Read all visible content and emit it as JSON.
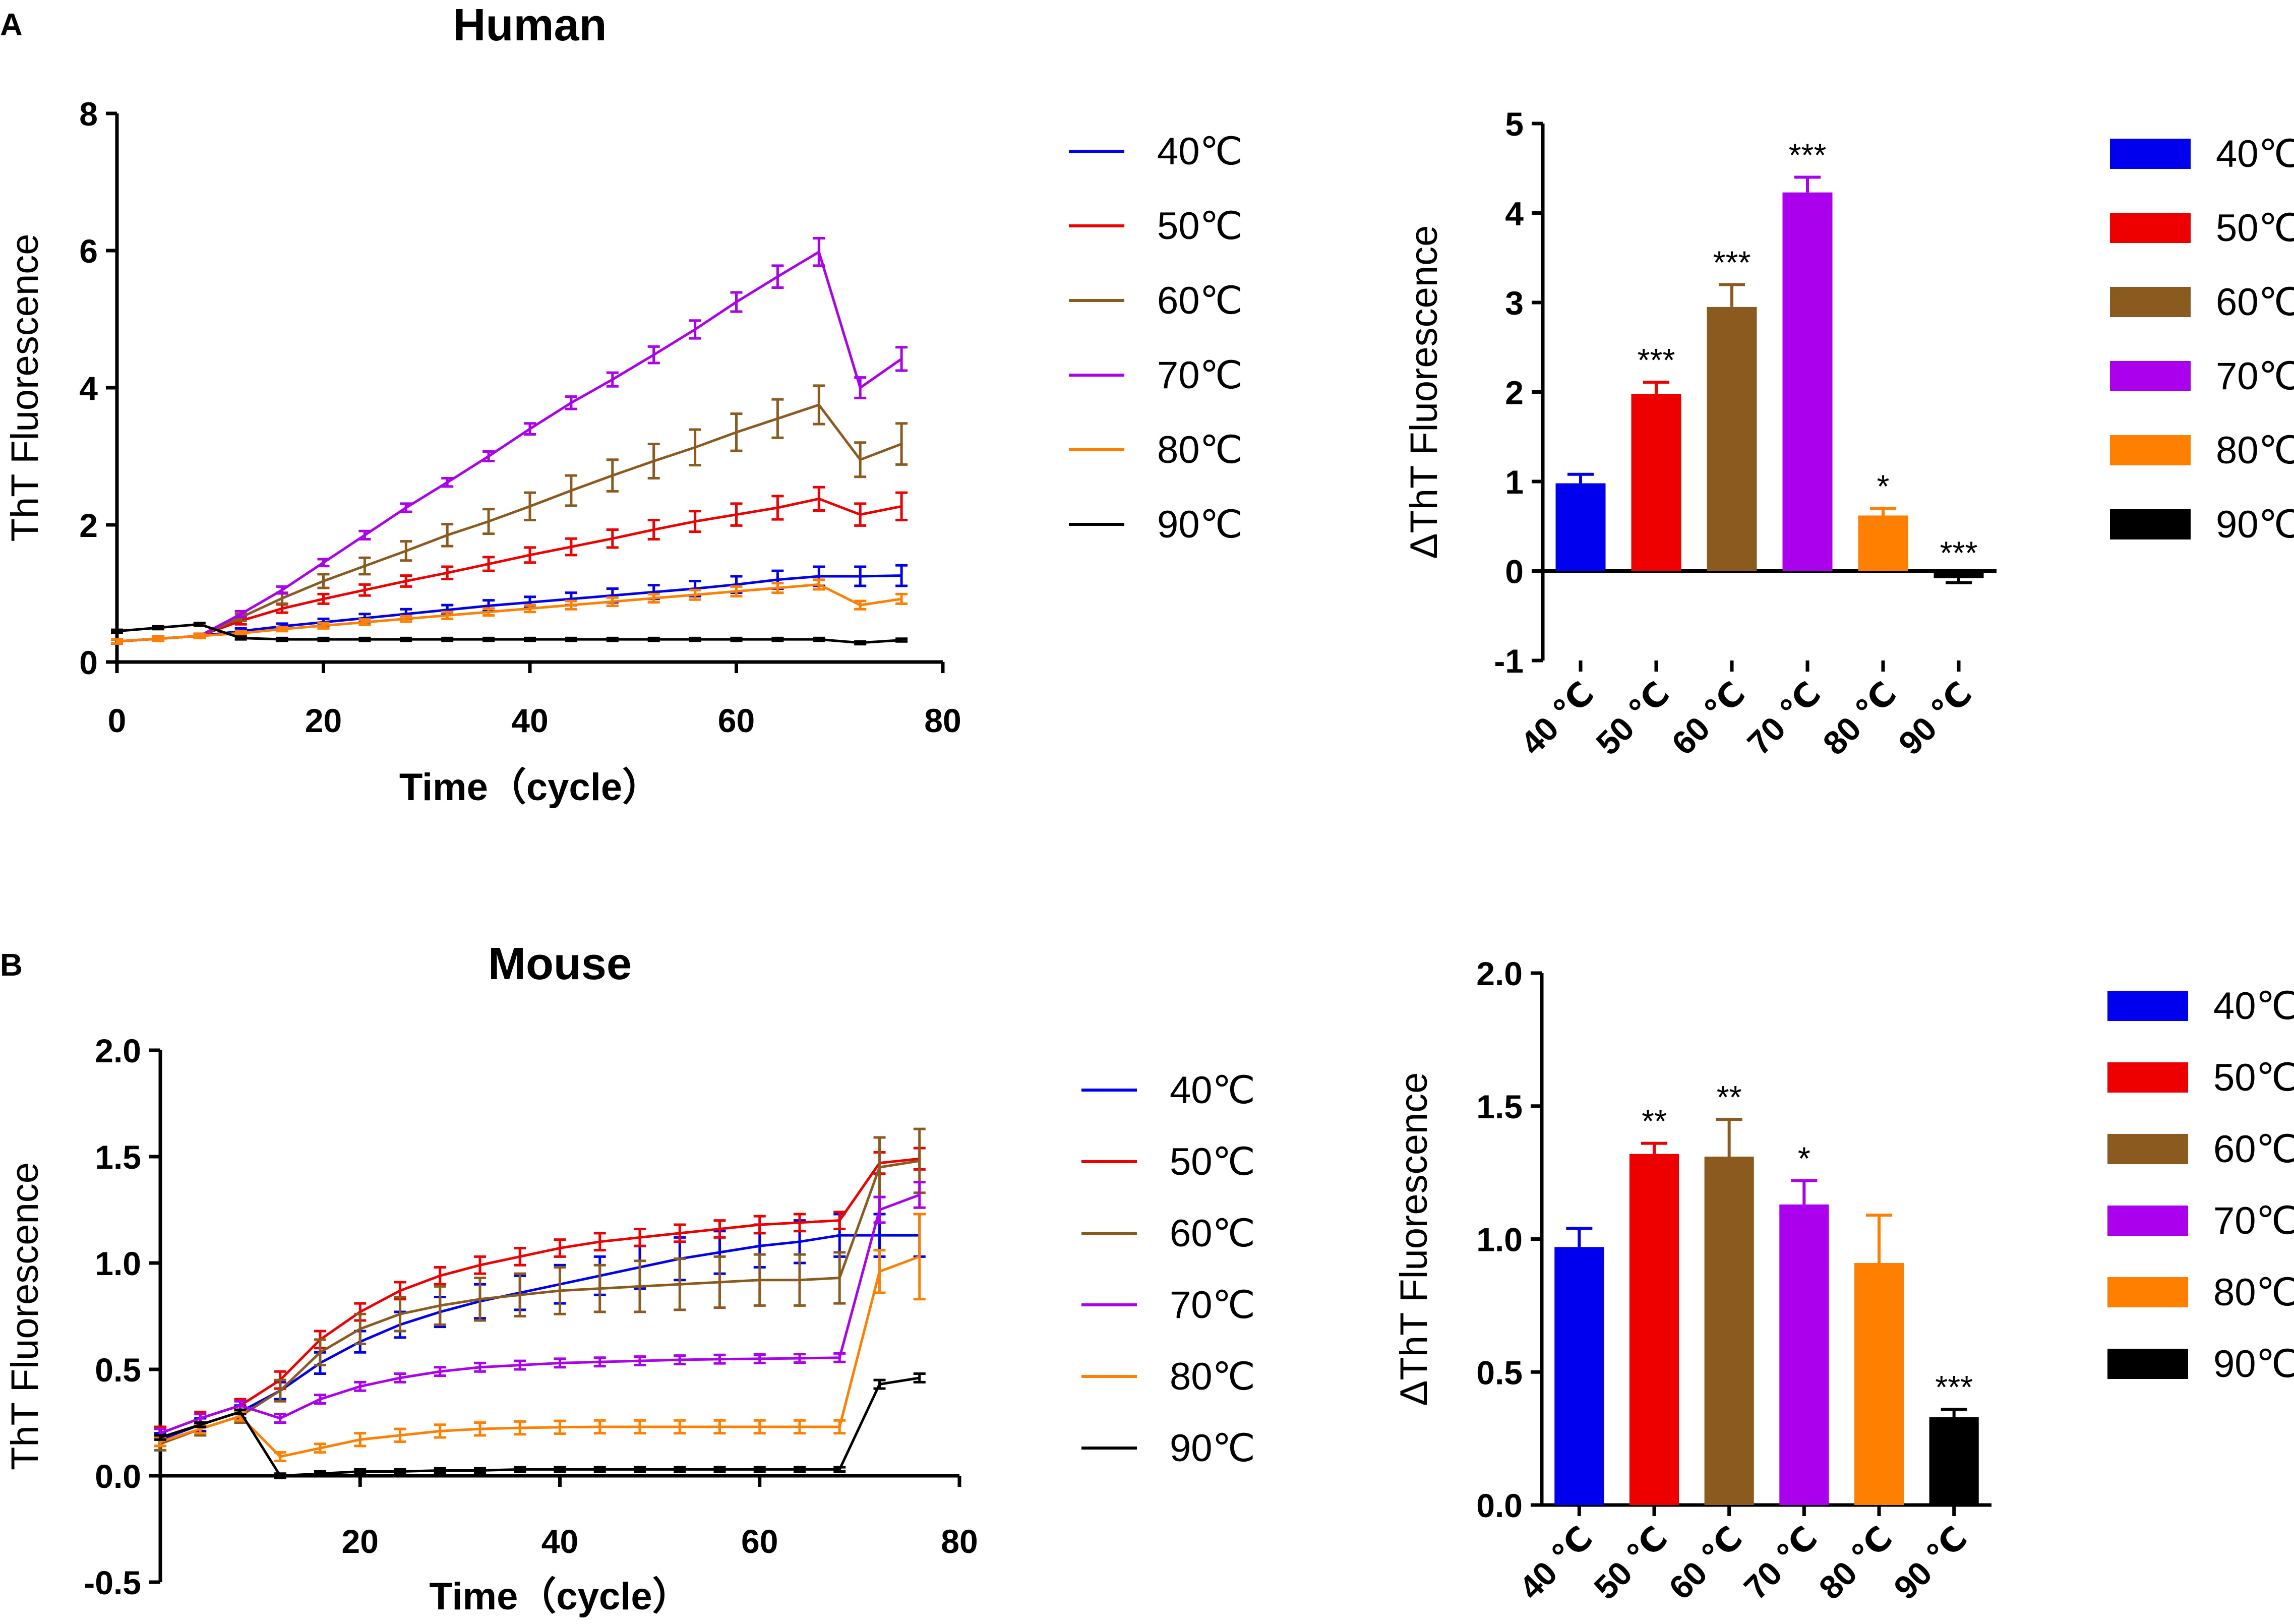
{
  "panel_labels": [
    "A",
    "B"
  ],
  "series_colors": {
    "40℃": "#0000ee",
    "50℃": "#ee0000",
    "60℃": "#8b5a1e",
    "70℃": "#aa00ee",
    "80℃": "#ff8000",
    "90℃": "#000000"
  },
  "chart_data": [
    {
      "id": "human_line",
      "type": "line",
      "title": "Human",
      "xlabel": "Time（cycle）",
      "ylabel": "ThT Fluorescence",
      "xlim": [
        0,
        80
      ],
      "ylim": [
        0,
        8
      ],
      "xticks": [
        0,
        20,
        40,
        60,
        80
      ],
      "yticks": [
        0,
        2,
        4,
        6,
        8
      ],
      "x": [
        0,
        4,
        8,
        12,
        16,
        20,
        24,
        28,
        32,
        36,
        40,
        44,
        48,
        52,
        56,
        60,
        64,
        68,
        72,
        76
      ],
      "legend": [
        "40℃",
        "50℃",
        "60℃",
        "70℃",
        "80℃",
        "90℃"
      ],
      "series": [
        {
          "name": "40℃",
          "values": [
            0.3,
            0.34,
            0.38,
            0.45,
            0.52,
            0.58,
            0.64,
            0.7,
            0.76,
            0.82,
            0.87,
            0.92,
            0.97,
            1.02,
            1.07,
            1.13,
            1.2,
            1.25,
            1.25,
            1.26
          ],
          "err": [
            0.03,
            0.03,
            0.03,
            0.04,
            0.04,
            0.05,
            0.06,
            0.07,
            0.07,
            0.08,
            0.08,
            0.09,
            0.1,
            0.1,
            0.11,
            0.12,
            0.13,
            0.14,
            0.14,
            0.15
          ]
        },
        {
          "name": "50℃",
          "values": [
            0.3,
            0.34,
            0.38,
            0.6,
            0.78,
            0.92,
            1.05,
            1.18,
            1.3,
            1.43,
            1.56,
            1.68,
            1.8,
            1.93,
            2.05,
            2.15,
            2.25,
            2.38,
            2.15,
            2.27
          ],
          "err": [
            0.03,
            0.03,
            0.03,
            0.05,
            0.06,
            0.07,
            0.08,
            0.08,
            0.09,
            0.1,
            0.11,
            0.12,
            0.13,
            0.14,
            0.15,
            0.16,
            0.17,
            0.17,
            0.16,
            0.2
          ]
        },
        {
          "name": "60℃",
          "values": [
            0.3,
            0.34,
            0.38,
            0.65,
            0.93,
            1.18,
            1.4,
            1.62,
            1.85,
            2.05,
            2.27,
            2.5,
            2.72,
            2.93,
            3.13,
            3.35,
            3.55,
            3.75,
            2.95,
            3.18
          ],
          "err": [
            0.03,
            0.03,
            0.03,
            0.05,
            0.08,
            0.1,
            0.12,
            0.14,
            0.16,
            0.18,
            0.2,
            0.22,
            0.23,
            0.25,
            0.26,
            0.27,
            0.28,
            0.28,
            0.25,
            0.3
          ]
        },
        {
          "name": "70℃",
          "values": [
            0.3,
            0.34,
            0.38,
            0.7,
            1.05,
            1.45,
            1.85,
            2.25,
            2.62,
            3.0,
            3.4,
            3.78,
            4.12,
            4.48,
            4.85,
            5.25,
            5.62,
            5.98,
            4.0,
            4.42
          ],
          "err": [
            0.03,
            0.03,
            0.03,
            0.04,
            0.05,
            0.05,
            0.06,
            0.06,
            0.06,
            0.07,
            0.08,
            0.09,
            0.1,
            0.12,
            0.13,
            0.14,
            0.16,
            0.2,
            0.15,
            0.17
          ]
        },
        {
          "name": "80℃",
          "values": [
            0.3,
            0.34,
            0.38,
            0.42,
            0.48,
            0.53,
            0.58,
            0.63,
            0.68,
            0.73,
            0.78,
            0.83,
            0.88,
            0.93,
            0.98,
            1.03,
            1.08,
            1.13,
            0.83,
            0.92
          ],
          "err": [
            0.03,
            0.03,
            0.03,
            0.03,
            0.03,
            0.04,
            0.04,
            0.04,
            0.05,
            0.05,
            0.05,
            0.06,
            0.06,
            0.06,
            0.07,
            0.07,
            0.07,
            0.07,
            0.06,
            0.07
          ]
        },
        {
          "name": "90℃",
          "values": [
            0.45,
            0.5,
            0.55,
            0.35,
            0.33,
            0.33,
            0.33,
            0.33,
            0.33,
            0.33,
            0.33,
            0.33,
            0.33,
            0.33,
            0.33,
            0.33,
            0.33,
            0.33,
            0.28,
            0.32
          ],
          "err": [
            0.02,
            0.02,
            0.02,
            0.02,
            0.02,
            0.02,
            0.02,
            0.02,
            0.02,
            0.02,
            0.02,
            0.02,
            0.02,
            0.02,
            0.02,
            0.02,
            0.02,
            0.02,
            0.02,
            0.02
          ]
        }
      ]
    },
    {
      "id": "human_bar",
      "type": "bar",
      "title": "",
      "xlabel": "",
      "ylabel": "ΔThT Fluorescence",
      "ylim": [
        -1,
        5
      ],
      "yticks": [
        -1,
        0,
        1,
        2,
        3,
        4,
        5
      ],
      "categories": [
        "40 ℃",
        "50 ℃",
        "60 ℃",
        "70 ℃",
        "80 ℃",
        "90 ℃"
      ],
      "values": [
        0.98,
        1.98,
        2.95,
        4.23,
        0.62,
        -0.08
      ],
      "err": [
        0.1,
        0.13,
        0.25,
        0.17,
        0.08,
        0.05
      ],
      "significance": [
        "",
        "***",
        "***",
        "***",
        "*",
        "***"
      ],
      "legend": [
        "40℃",
        "50℃",
        "60℃",
        "70℃",
        "80℃",
        "90℃"
      ]
    },
    {
      "id": "mouse_line",
      "type": "line",
      "title": "Mouse",
      "xlabel": "Time（cycle）",
      "ylabel": "ThT Fluorescence",
      "xlim": [
        0,
        80
      ],
      "ylim": [
        -0.5,
        2.0
      ],
      "xticks": [
        20,
        40,
        60,
        80
      ],
      "yticks": [
        -0.5,
        0.0,
        0.5,
        1.0,
        1.5,
        2.0
      ],
      "x": [
        0,
        4,
        8,
        12,
        16,
        20,
        24,
        28,
        32,
        36,
        40,
        44,
        48,
        52,
        56,
        60,
        64,
        68,
        72,
        76
      ],
      "legend": [
        "40℃",
        "50℃",
        "60℃",
        "70℃",
        "80℃",
        "90℃"
      ],
      "series": [
        {
          "name": "40℃",
          "values": [
            0.17,
            0.24,
            0.3,
            0.4,
            0.53,
            0.63,
            0.71,
            0.77,
            0.82,
            0.86,
            0.9,
            0.94,
            0.98,
            1.02,
            1.05,
            1.08,
            1.1,
            1.13,
            1.13,
            1.13
          ],
          "err": [
            0.03,
            0.03,
            0.03,
            0.04,
            0.05,
            0.05,
            0.06,
            0.07,
            0.08,
            0.08,
            0.09,
            0.09,
            0.1,
            0.1,
            0.1,
            0.1,
            0.1,
            0.1,
            0.1,
            0.1
          ]
        },
        {
          "name": "50℃",
          "values": [
            0.2,
            0.27,
            0.33,
            0.45,
            0.64,
            0.77,
            0.87,
            0.94,
            0.99,
            1.03,
            1.07,
            1.1,
            1.12,
            1.14,
            1.16,
            1.18,
            1.19,
            1.2,
            1.47,
            1.49
          ],
          "err": [
            0.03,
            0.03,
            0.03,
            0.04,
            0.04,
            0.04,
            0.04,
            0.04,
            0.04,
            0.04,
            0.04,
            0.04,
            0.04,
            0.04,
            0.04,
            0.04,
            0.04,
            0.04,
            0.05,
            0.05
          ]
        },
        {
          "name": "60℃",
          "values": [
            0.15,
            0.22,
            0.28,
            0.4,
            0.58,
            0.69,
            0.76,
            0.8,
            0.83,
            0.85,
            0.87,
            0.88,
            0.89,
            0.9,
            0.91,
            0.92,
            0.92,
            0.93,
            1.45,
            1.48
          ],
          "err": [
            0.03,
            0.03,
            0.03,
            0.05,
            0.06,
            0.07,
            0.08,
            0.09,
            0.1,
            0.1,
            0.11,
            0.11,
            0.12,
            0.12,
            0.12,
            0.12,
            0.12,
            0.12,
            0.14,
            0.15
          ]
        },
        {
          "name": "70℃",
          "values": [
            0.2,
            0.27,
            0.33,
            0.27,
            0.36,
            0.42,
            0.46,
            0.49,
            0.51,
            0.52,
            0.53,
            0.535,
            0.54,
            0.545,
            0.548,
            0.55,
            0.552,
            0.555,
            1.25,
            1.32
          ],
          "err": [
            0.02,
            0.02,
            0.02,
            0.02,
            0.02,
            0.02,
            0.02,
            0.02,
            0.02,
            0.02,
            0.02,
            0.02,
            0.02,
            0.02,
            0.02,
            0.02,
            0.02,
            0.02,
            0.06,
            0.06
          ]
        },
        {
          "name": "80℃",
          "values": [
            0.16,
            0.22,
            0.28,
            0.09,
            0.13,
            0.17,
            0.19,
            0.21,
            0.22,
            0.225,
            0.228,
            0.23,
            0.23,
            0.23,
            0.23,
            0.23,
            0.23,
            0.23,
            0.96,
            1.03
          ],
          "err": [
            0.02,
            0.02,
            0.02,
            0.02,
            0.02,
            0.03,
            0.03,
            0.03,
            0.03,
            0.03,
            0.03,
            0.03,
            0.03,
            0.03,
            0.03,
            0.03,
            0.03,
            0.03,
            0.1,
            0.2
          ]
        },
        {
          "name": "90℃",
          "values": [
            0.18,
            0.24,
            0.3,
            0.0,
            0.01,
            0.02,
            0.02,
            0.025,
            0.025,
            0.03,
            0.03,
            0.03,
            0.03,
            0.03,
            0.03,
            0.03,
            0.03,
            0.03,
            0.43,
            0.46
          ],
          "err": [
            0.01,
            0.01,
            0.01,
            0.01,
            0.01,
            0.01,
            0.01,
            0.01,
            0.01,
            0.01,
            0.01,
            0.01,
            0.01,
            0.01,
            0.01,
            0.01,
            0.01,
            0.01,
            0.02,
            0.02
          ]
        }
      ]
    },
    {
      "id": "mouse_bar",
      "type": "bar",
      "title": "",
      "xlabel": "",
      "ylabel": "ΔThT Fluorescence",
      "ylim": [
        0,
        2.0
      ],
      "yticks": [
        0.0,
        0.5,
        1.0,
        1.5,
        2.0
      ],
      "categories": [
        "40 ℃",
        "50 ℃",
        "60 ℃",
        "70 ℃",
        "80 ℃",
        "90 ℃"
      ],
      "values": [
        0.97,
        1.32,
        1.31,
        1.13,
        0.91,
        0.33
      ],
      "err": [
        0.07,
        0.04,
        0.14,
        0.09,
        0.18,
        0.03
      ],
      "significance": [
        "",
        "**",
        "**",
        "*",
        "",
        "***"
      ],
      "legend": [
        "40℃",
        "50℃",
        "60℃",
        "70℃",
        "80℃",
        "90℃"
      ]
    }
  ]
}
